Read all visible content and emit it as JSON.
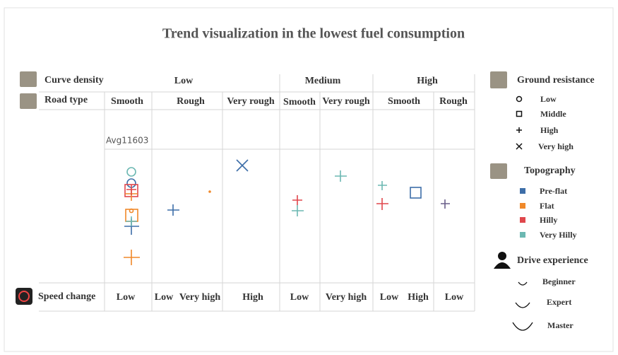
{
  "title": "Trend visualization in the lowest fuel consumption",
  "header": {
    "curve_density_label": "Curve density",
    "road_type_label": "Road type",
    "speed_change_label": "Speed change",
    "curve_density": [
      "Low",
      "Medium",
      "High"
    ],
    "road_types": [
      "Smooth",
      "Rough",
      "Very rough",
      "Smooth",
      "Very rough",
      "Smooth",
      "Rough"
    ],
    "speed_change": [
      [
        "Low"
      ],
      [
        "Low",
        "Very high"
      ],
      [
        "High"
      ],
      [
        "Low"
      ],
      [
        "Very high"
      ],
      [
        "Low",
        "High"
      ],
      [
        "Low"
      ]
    ]
  },
  "average_label": "Avg11603",
  "legend": {
    "ground_resistance": {
      "title": "Ground resistance",
      "items": [
        "Low",
        "Middle",
        "High",
        "Very high"
      ]
    },
    "topography": {
      "title": "Topography",
      "items": [
        "Pre-flat",
        "Flat",
        "Hilly",
        "Very Hilly"
      ]
    },
    "drive_experience": {
      "title": "Drive experience",
      "items": [
        "Beginner",
        "Expert",
        "Master"
      ]
    }
  }
}
